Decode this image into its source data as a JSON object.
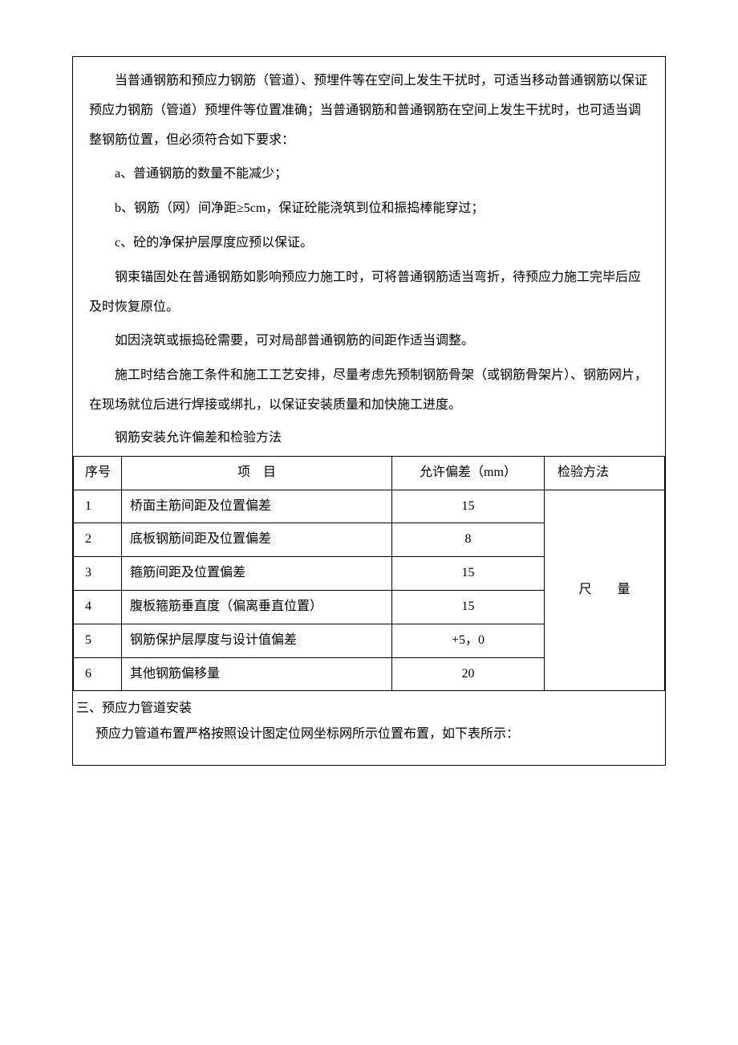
{
  "paragraphs": {
    "p1": "当普通钢筋和预应力钢筋（管道）、预埋件等在空间上发生干扰时，可适当移动普通钢筋以保证预应力钢筋（管道）预埋件等位置准确；当普通钢筋和普通钢筋在空间上发生干扰时，也可适当调整钢筋位置，但必须符合如下要求：",
    "a": "a、普通钢筋的数量不能减少；",
    "b": "b、钢筋（网）间净距≥5cm，保证砼能浇筑到位和振捣棒能穿过；",
    "c": "c、砼的净保护层厚度应预以保证。",
    "p2": "钢束锚固处在普通钢筋如影响预应力施工时，可将普通钢筋适当弯折，待预应力施工完毕后应及时恢复原位。",
    "p3": "如因浇筑或振捣砼需要，可对局部普通钢筋的间距作适当调整。",
    "p4": "施工时结合施工条件和施工工艺安排，尽量考虑先预制钢筋骨架（或钢筋骨架片）、钢筋网片，在现场就位后进行焊接或绑扎，以保证安装质量和加快施工进度。",
    "tableTitle": "钢筋安装允许偏差和检验方法"
  },
  "table": {
    "headers": {
      "seq": "序号",
      "item": "项　目",
      "deviation": "允许偏差（mm）",
      "method": "检验方法"
    },
    "rows": [
      {
        "seq": "1",
        "item": "桥面主筋间距及位置偏差",
        "deviation": "15"
      },
      {
        "seq": "2",
        "item": "底板钢筋间距及位置偏差",
        "deviation": "8"
      },
      {
        "seq": "3",
        "item": "箍筋间距及位置偏差",
        "deviation": "15"
      },
      {
        "seq": "4",
        "item": "腹板箍筋垂直度（偏离垂直位置）",
        "deviation": "15"
      },
      {
        "seq": "5",
        "item": "钢筋保护层厚度与设计值偏差",
        "deviation": "+5，0"
      },
      {
        "seq": "6",
        "item": "其他钢筋偏移量",
        "deviation": "20"
      }
    ],
    "methodMerged": "尺　　量"
  },
  "section3": {
    "heading": "三、预应力管道安装",
    "text": "预应力管道布置严格按照设计图定位网坐标网所示位置布置，如下表所示："
  }
}
